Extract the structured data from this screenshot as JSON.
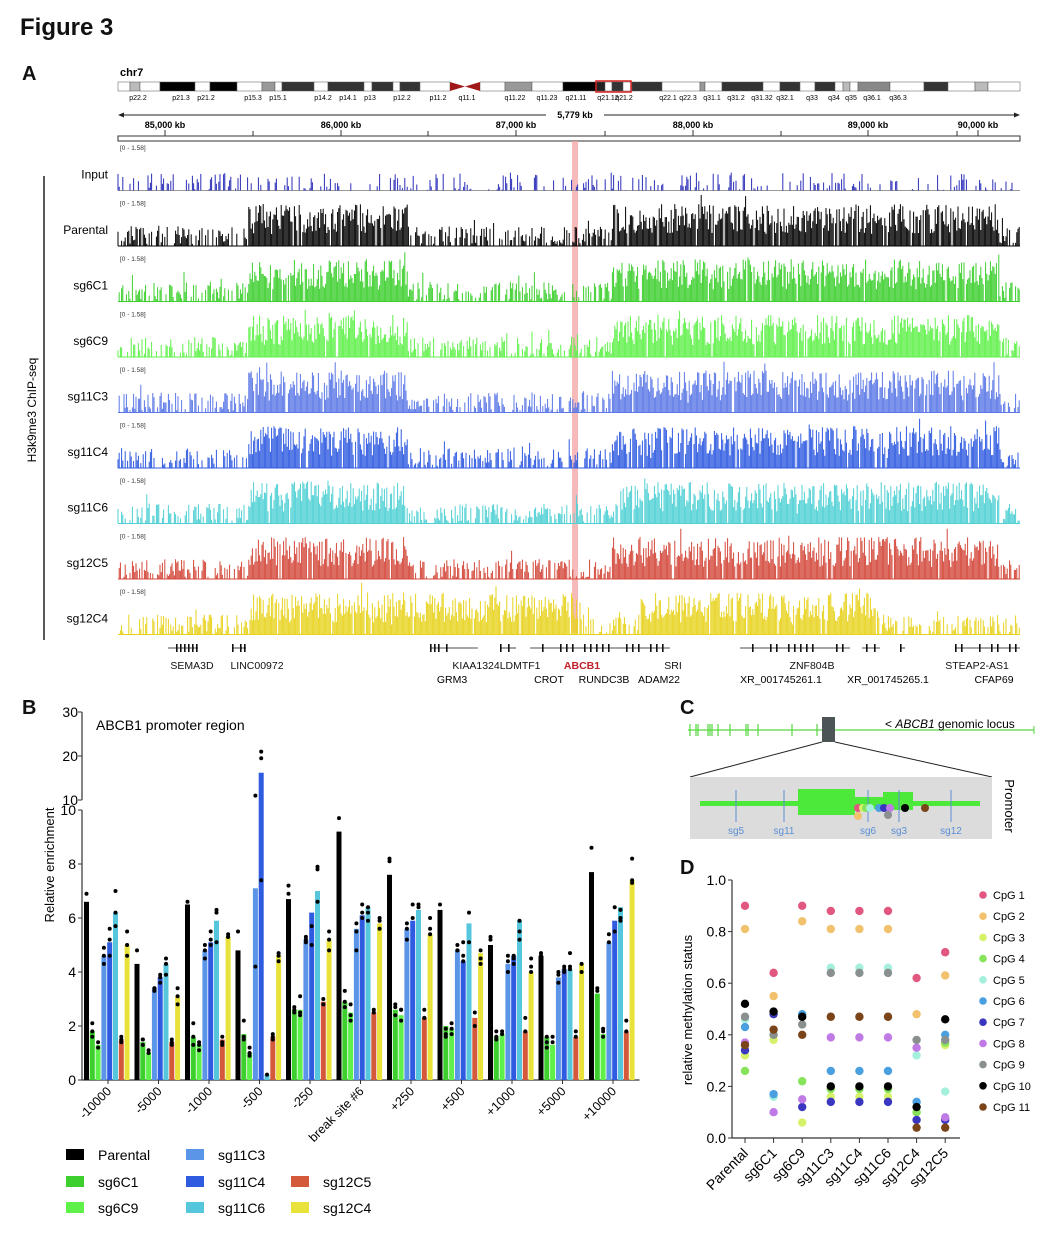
{
  "figure_title": "Figure 3",
  "panels": {
    "A": {
      "label": "A",
      "chromosome": "chr7",
      "bands": [
        "p22.2",
        "p21.3",
        "p21.2",
        "p15.3",
        "p15.1",
        "p14.2",
        "p14.1",
        "p13",
        "p12.2",
        "p11.2",
        "q11.1",
        "q11.22",
        "q11.23",
        "q21.11",
        "q21.12",
        "q21.2",
        "q22.1",
        "q22.3",
        "q31.1",
        "q31.2",
        "q31.32",
        "q32.1",
        "q33",
        "q34",
        "q35",
        "q36.1",
        "q36.3"
      ],
      "span_label": "5,779 kb",
      "ruler_ticks": [
        "85,000 kb",
        "86,000 kb",
        "87,000 kb",
        "88,000 kb",
        "89,000 kb",
        "90,000 kb"
      ],
      "y_label": "H3k9me3 ChIP-seq",
      "track_range": "[0 - 1.58]",
      "tracks": [
        {
          "name": "Input",
          "color": "#2b2fb8"
        },
        {
          "name": "Parental",
          "color": "#000000"
        },
        {
          "name": "sg6C1",
          "color": "#3ccf2e"
        },
        {
          "name": "sg6C9",
          "color": "#5ff04a"
        },
        {
          "name": "sg11C3",
          "color": "#5b78e6"
        },
        {
          "name": "sg11C4",
          "color": "#2f5be0"
        },
        {
          "name": "sg11C6",
          "color": "#4fd0d4"
        },
        {
          "name": "sg12C5",
          "color": "#d4483a"
        },
        {
          "name": "sg12C4",
          "color": "#e8d21e"
        }
      ],
      "highlight_color": "#f4a3a3",
      "genes_row1": [
        "SEMA3D",
        "LINC00972",
        "KIAA1324L",
        "DMTF1",
        "ABCB1",
        "SRI",
        "ZNF804B",
        "STEAP2-AS1"
      ],
      "genes_row2": [
        "GRM3",
        "CROT",
        "RUNDC3B",
        "ADAM22",
        "XR_001745261.1",
        "XR_001745265.1",
        "CFAP69"
      ],
      "highlight_gene": "ABCB1",
      "highlight_gene_color": "#c0202a"
    },
    "B": {
      "label": "B"
    },
    "C": {
      "label": "C",
      "locus_label_prefix": "< ",
      "locus_gene": "ABCB1",
      "locus_label_suffix": " genomic locus",
      "promoter_label": "Promoter",
      "sg_labels": [
        "sg5",
        "sg11",
        "sg6",
        "sg3",
        "sg12"
      ]
    },
    "D": {
      "label": "D"
    }
  },
  "chart_data": [
    {
      "id": "B",
      "type": "bar",
      "title": "ABCB1 promoter region",
      "xlabel": "",
      "ylabel": "Relative enrichment",
      "axis_break": {
        "lower": [
          0,
          10
        ],
        "upper": [
          10,
          30
        ]
      },
      "yticks_lower": [
        0,
        2,
        4,
        6,
        8,
        10
      ],
      "yticks_upper": [
        10,
        20,
        30
      ],
      "categories": [
        "-10000",
        "-5000",
        "-1000",
        "-500",
        "-250",
        "break site #6",
        "+250",
        "+500",
        "+1000",
        "+5000",
        "+10000"
      ],
      "series": [
        {
          "name": "Parental",
          "color": "#000000",
          "values": [
            6.6,
            4.3,
            6.5,
            4.8,
            6.7,
            9.2,
            7.6,
            6.3,
            5.0,
            4.6,
            7.7
          ]
        },
        {
          "name": "sg6C1",
          "color": "#3ccf2e",
          "values": [
            1.8,
            1.4,
            1.6,
            1.7,
            2.6,
            2.9,
            2.6,
            2.0,
            1.6,
            1.6,
            3.2
          ]
        },
        {
          "name": "sg6C9",
          "color": "#5ff04a",
          "values": [
            1.3,
            1.0,
            1.3,
            1.0,
            2.6,
            2.5,
            2.4,
            1.9,
            1.7,
            1.3,
            1.7
          ]
        },
        {
          "name": "sg11C3",
          "color": "#5b95e8",
          "values": [
            4.6,
            3.4,
            4.8,
            7.1,
            5.2,
            5.6,
            5.6,
            4.8,
            4.3,
            3.8,
            5.1
          ]
        },
        {
          "name": "sg11C4",
          "color": "#2f5be0",
          "values": [
            5.1,
            3.8,
            5.1,
            16.2,
            6.2,
            6.1,
            5.9,
            4.4,
            4.6,
            4.1,
            5.9
          ]
        },
        {
          "name": "sg11C6",
          "color": "#56c6dc",
          "values": [
            6.2,
            4.3,
            5.9,
            0.2,
            7.0,
            6.4,
            6.3,
            5.8,
            5.9,
            4.1,
            6.4
          ]
        },
        {
          "name": "sg12C5",
          "color": "#d4583a",
          "values": [
            1.5,
            1.4,
            1.5,
            1.6,
            2.9,
            2.5,
            2.3,
            2.3,
            1.8,
            1.6,
            1.8
          ]
        },
        {
          "name": "sg12C4",
          "color": "#e8e23a",
          "values": [
            5.0,
            3.1,
            5.3,
            4.6,
            5.2,
            5.8,
            5.4,
            4.7,
            4.0,
            4.3,
            7.4
          ]
        }
      ],
      "points": [
        [
          [
            6.9
          ],
          [
            2.1,
            1.8,
            1.6
          ],
          [
            1.4,
            1.2
          ],
          [
            4.9,
            4.6,
            4.3
          ],
          [
            5.6,
            5.2,
            4.6
          ],
          [
            7.0,
            6.2,
            5.7
          ],
          [
            1.6,
            1.5,
            1.4
          ],
          [
            5.5,
            5.0,
            4.6
          ]
        ],
        [
          [
            4.8
          ],
          [
            1.5,
            1.5,
            1.3
          ],
          [
            1.1,
            1.0
          ],
          [
            3.4,
            3.4,
            3.3
          ],
          [
            3.9,
            3.8,
            3.6
          ],
          [
            4.5,
            4.3,
            3.9
          ],
          [
            1.5,
            1.4,
            1.3
          ],
          [
            3.4,
            3.1,
            2.8
          ]
        ],
        [
          [
            6.6
          ],
          [
            2.1,
            1.6,
            1.3
          ],
          [
            1.4,
            1.3,
            1.1
          ],
          [
            5.0,
            4.8,
            4.5
          ],
          [
            5.5,
            5.2,
            5.0
          ],
          [
            6.3,
            6.2,
            5.1
          ],
          [
            1.6,
            1.4,
            1.3
          ],
          [
            5.4,
            5.3,
            5.3
          ]
        ],
        [
          [
            5.5
          ],
          [
            2.2,
            1.6,
            1.5
          ],
          [
            1.2,
            1.0,
            0.9
          ],
          [
            11.0,
            4.2
          ],
          [
            21.0,
            19.5,
            7.4
          ],
          [
            0.2
          ],
          [
            1.7,
            1.6,
            1.5
          ],
          [
            4.7,
            4.6,
            4.4
          ]
        ],
        [
          [
            7.2,
            6.9
          ],
          [
            2.7,
            2.6,
            2.5
          ],
          [
            3.1,
            2.5,
            2.4
          ],
          [
            5.3,
            5.2,
            5.1
          ],
          [
            5.7,
            5.0
          ],
          [
            7.9,
            7.8,
            6.6
          ],
          [
            3.0,
            2.8
          ],
          [
            5.5,
            5.2,
            4.8
          ]
        ],
        [
          [
            9.7
          ],
          [
            3.3,
            2.9,
            2.7
          ],
          [
            2.8,
            2.4,
            2.2
          ],
          [
            5.8,
            5.5,
            4.8
          ],
          [
            6.5,
            6.2,
            6.0
          ],
          [
            6.4,
            6.2,
            5.9
          ],
          [
            2.6,
            2.5
          ],
          [
            6.0,
            5.9,
            5.6
          ]
        ],
        [
          [
            8.2,
            8.1
          ],
          [
            2.8,
            2.7,
            2.4
          ],
          [
            2.6,
            2.6,
            2.2
          ],
          [
            5.8,
            5.6,
            5.2
          ],
          [
            6.5,
            6.0
          ],
          [
            6.5,
            6.4
          ],
          [
            2.6,
            2.3,
            2.3
          ],
          [
            6.0,
            5.6,
            5.4
          ]
        ],
        [
          [
            6.5
          ],
          [
            1.9,
            1.7,
            1.6
          ],
          [
            2.1,
            1.9,
            1.7
          ],
          [
            5.0,
            4.8,
            4.8
          ],
          [
            5.1,
            4.6,
            4.4
          ],
          [
            6.2,
            5.1
          ],
          [
            2.5,
            2.0
          ],
          [
            4.8,
            4.5,
            4.3
          ]
        ],
        [
          [
            5.3,
            5.2
          ],
          [
            1.8,
            1.6,
            1.5
          ],
          [
            1.8,
            1.7
          ],
          [
            4.6,
            4.4,
            4.0
          ],
          [
            4.6,
            4.5,
            4.3
          ],
          [
            5.9,
            5.5,
            5.2
          ],
          [
            2.3,
            1.8
          ],
          [
            4.5,
            4.2,
            4.0
          ]
        ],
        [
          [
            4.7,
            4.6
          ],
          [
            1.6,
            1.4,
            1.2
          ],
          [
            1.6,
            1.4
          ],
          [
            4.0,
            3.9,
            3.6
          ],
          [
            4.2,
            4.1,
            4.0
          ],
          [
            4.7,
            4.2,
            4.1
          ],
          [
            1.8,
            1.6
          ],
          [
            4.3,
            4.0
          ]
        ],
        [
          [
            8.6
          ],
          [
            3.4,
            3.3
          ],
          [
            1.9,
            1.8,
            1.6
          ],
          [
            5.4,
            5.1
          ],
          [
            6.4,
            5.5
          ],
          [
            6.3,
            6.0,
            5.9
          ],
          [
            2.2,
            1.8
          ],
          [
            8.2,
            7.4,
            7.3
          ]
        ]
      ],
      "legend": [
        "Parental",
        "sg6C1",
        "sg6C9",
        "sg11C3",
        "sg11C4",
        "sg11C6",
        "sg12C5",
        "sg12C4"
      ]
    },
    {
      "id": "D",
      "type": "scatter",
      "title": "",
      "xlabel": "",
      "ylabel": "relative methylation status",
      "ylim": [
        0,
        1.0
      ],
      "yticks": [
        0.0,
        0.2,
        0.4,
        0.6,
        0.8,
        1.0
      ],
      "categories": [
        "Parental",
        "sg6C1",
        "sg6C9",
        "sg11C3",
        "sg11C4",
        "sg11C6",
        "sg12C4",
        "sg12C5"
      ],
      "series": [
        {
          "name": "CpG 1",
          "color": "#e2577f",
          "values": [
            0.9,
            0.64,
            0.9,
            0.88,
            0.88,
            0.88,
            0.62,
            0.72
          ]
        },
        {
          "name": "CpG 2",
          "color": "#f1c16e",
          "values": [
            0.81,
            0.55,
            0.84,
            0.81,
            0.81,
            0.81,
            0.48,
            0.63
          ]
        },
        {
          "name": "CpG 3",
          "color": "#d6f26a",
          "values": [
            0.32,
            0.38,
            0.06,
            0.16,
            0.16,
            0.16,
            0.1,
            0.36
          ]
        },
        {
          "name": "CpG 4",
          "color": "#86e35a",
          "values": [
            0.26,
            0.4,
            0.22,
            0.19,
            0.19,
            0.19,
            0.1,
            0.37
          ]
        },
        {
          "name": "CpG 5",
          "color": "#a5f0dc",
          "values": [
            0.46,
            0.16,
            0.48,
            0.66,
            0.66,
            0.66,
            0.32,
            0.18
          ]
        },
        {
          "name": "CpG 6",
          "color": "#4a9fe0",
          "values": [
            0.43,
            0.17,
            0.48,
            0.26,
            0.26,
            0.26,
            0.14,
            0.4
          ]
        },
        {
          "name": "CpG 7",
          "color": "#3a36c0",
          "values": [
            0.34,
            0.48,
            0.12,
            0.14,
            0.14,
            0.14,
            0.07,
            0.07
          ]
        },
        {
          "name": "CpG 8",
          "color": "#c07ae6",
          "values": [
            0.37,
            0.1,
            0.15,
            0.39,
            0.39,
            0.39,
            0.35,
            0.08
          ]
        },
        {
          "name": "CpG 9",
          "color": "#8a9090",
          "values": [
            0.47,
            0.4,
            0.44,
            0.64,
            0.64,
            0.64,
            0.38,
            0.38
          ]
        },
        {
          "name": "CpG 10",
          "color": "#000000",
          "values": [
            0.52,
            0.49,
            0.47,
            0.2,
            0.2,
            0.2,
            0.12,
            0.46
          ]
        },
        {
          "name": "CpG 11",
          "color": "#7a4418",
          "values": [
            0.36,
            0.42,
            0.4,
            0.47,
            0.47,
            0.47,
            0.04,
            0.04
          ]
        }
      ],
      "legend_position": "right"
    }
  ]
}
